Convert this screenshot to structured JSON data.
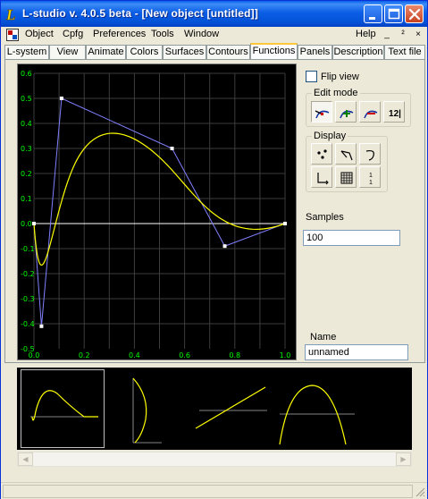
{
  "window": {
    "title": "L-studio v. 4.0.5 beta - [New object [untitled]]"
  },
  "menu": {
    "items": [
      "Object",
      "Cpfg",
      "Preferences",
      "Tools",
      "Window"
    ],
    "help": "Help",
    "mdi": {
      "minimize": "_",
      "restore": "²",
      "close": "×"
    }
  },
  "tabs": [
    "L-system",
    "View",
    "Animate",
    "Colors",
    "Surfaces",
    "Contours",
    "Functions",
    "Panels",
    "Description",
    "Text file"
  ],
  "active_tab": "Functions",
  "plot": {
    "y_ticks": [
      "0.6",
      "0.5",
      "0.4",
      "0.3",
      "0.2",
      "0.1",
      "0.0",
      "-0.1",
      "-0.2",
      "-0.3",
      "-0.4",
      "-0.5"
    ],
    "x_ticks": [
      "0.0",
      "0.2",
      "0.4",
      "0.6",
      "0.8",
      "1.0"
    ],
    "axis_color": "#00ff00",
    "curve_color": "#ffff00",
    "control_color": "#8080ff",
    "control_points": [
      {
        "x": 0.0,
        "y": 0.0
      },
      {
        "x": 0.03,
        "y": -0.41
      },
      {
        "x": 0.11,
        "y": 0.5
      },
      {
        "x": 0.55,
        "y": 0.3
      },
      {
        "x": 0.76,
        "y": -0.09
      },
      {
        "x": 1.0,
        "y": 0.0
      }
    ]
  },
  "sidebar": {
    "flip_view_label": "Flip view",
    "flip_view_checked": false,
    "edit_mode_title": "Edit mode",
    "display_title": "Display",
    "edit_tools": [
      "move-point-icon",
      "add-point-icon",
      "delete-point-icon",
      "numeric-icon"
    ],
    "display_tools": [
      "points-icon",
      "segments-icon",
      "curve-icon",
      "axes-icon",
      "grid-icon",
      "labels-icon"
    ],
    "numeric_text": "12|",
    "labels_text": "1₃\n₁₉",
    "samples_label": "Samples",
    "samples_value": "100",
    "name_label": "Name",
    "name_value": "unnamed"
  },
  "gallery": {
    "thumbnails": [
      "function-thumbnail",
      "contour-thumbnail",
      "line-thumbnail",
      "arc-thumbnail"
    ]
  }
}
